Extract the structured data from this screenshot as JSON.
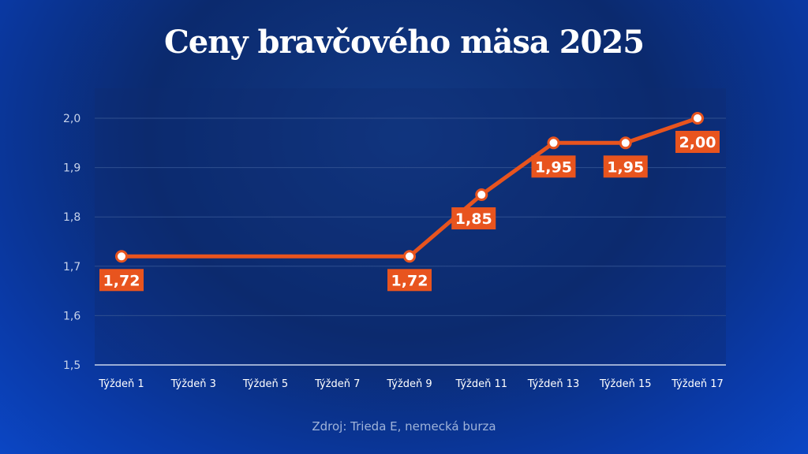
{
  "chart_data": {
    "type": "line",
    "title": "Ceny bravčového mäsa 2025",
    "source": "Zdroj: Trieda E, nemecká burza",
    "categories": [
      "Týždeň 1",
      "Týždeň 3",
      "Týždeň 5",
      "Týždeň 7",
      "Týždeň 9",
      "Týždeň 11",
      "Týždeň 13",
      "Týždeň 15",
      "Týždeň 17"
    ],
    "ylim": [
      1.5,
      2.0
    ],
    "yticks": [
      "1,5",
      "1,6",
      "1,7",
      "1,8",
      "1,9",
      "2,0"
    ],
    "grid": true,
    "series": [
      {
        "points": [
          {
            "x": 1,
            "y": 1.72,
            "label": "1,72"
          },
          {
            "x": 9,
            "y": 1.72,
            "label": "1,72"
          },
          {
            "x": 11,
            "y": 1.845,
            "label": "1,85"
          },
          {
            "x": 13,
            "y": 1.95,
            "label": "1,95"
          },
          {
            "x": 15,
            "y": 1.95,
            "label": "1,95"
          },
          {
            "x": 17,
            "y": 2.0,
            "label": "2,00"
          }
        ]
      }
    ],
    "colors": {
      "line": "#e8541e",
      "label_bg": "#e8541e",
      "marker_fill": "#ffffff"
    }
  }
}
